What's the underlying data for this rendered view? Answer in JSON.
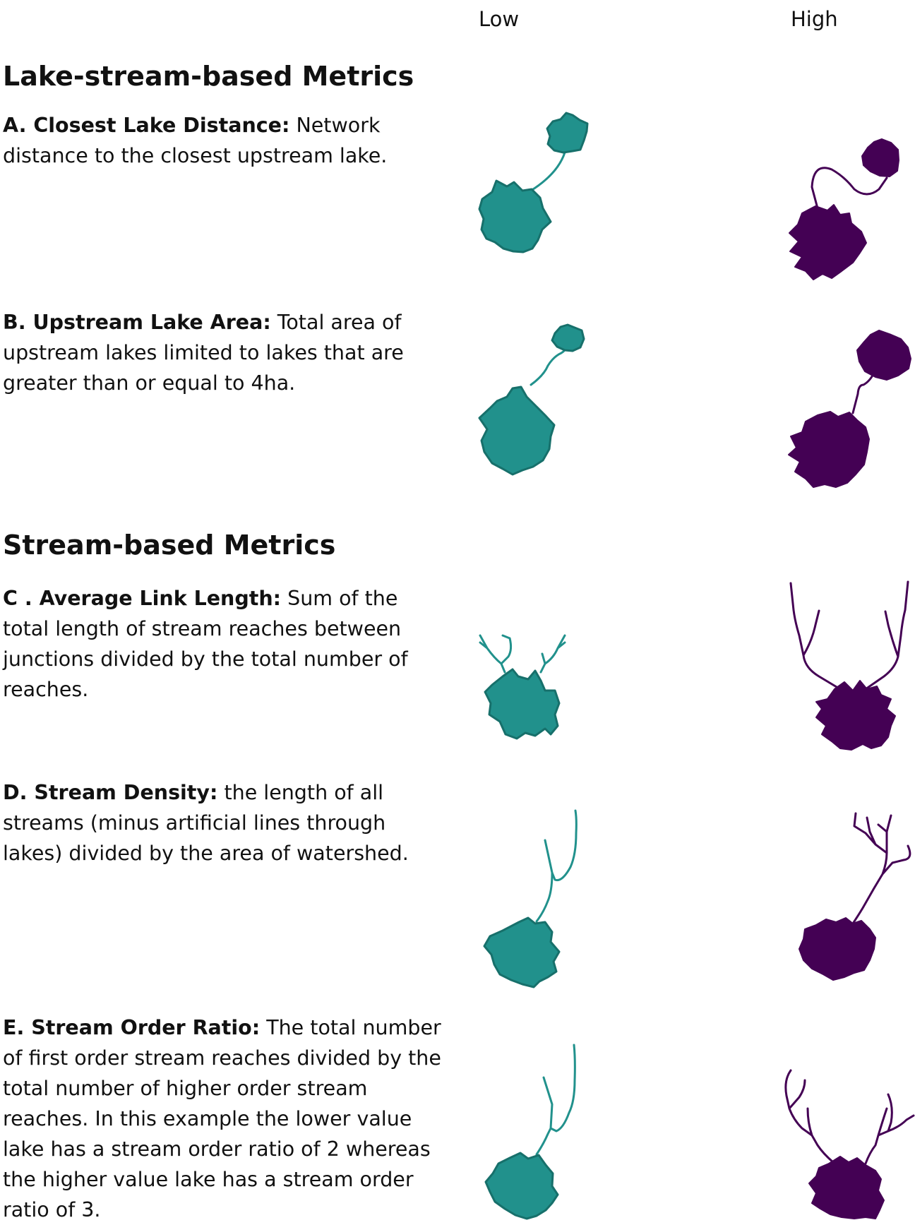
{
  "columns": {
    "low": "Low",
    "high": "High"
  },
  "colors": {
    "low": "#21918c",
    "low_outline": "#17706b",
    "high": "#440154"
  },
  "sections": {
    "lake_stream": "Lake-stream-based Metrics",
    "stream": "Stream-based Metrics"
  },
  "metrics": {
    "a": {
      "lead": "A. Closest Lake Distance:",
      "text": " Network distance to the closest upstream lake."
    },
    "b": {
      "lead": "B. Upstream Lake Area:",
      "text": " Total area of upstream lakes limited to lakes that are greater than or equal to 4ha."
    },
    "c": {
      "lead": "C . Average Link Length:",
      "text": " Sum of the total length of stream reaches between junctions divided by the total number of reaches."
    },
    "d": {
      "lead": "D. Stream Density:",
      "text": " the length of all streams (minus artificial lines through lakes) divided by the area of watershed."
    },
    "e": {
      "lead": "E. Stream Order Ratio:",
      "text": " The total number of first order stream reaches divided by the total number of higher order stream reaches. In this example the lower value lake has a stream order ratio of 2 whereas the higher value lake has a stream order ratio of 3."
    }
  }
}
